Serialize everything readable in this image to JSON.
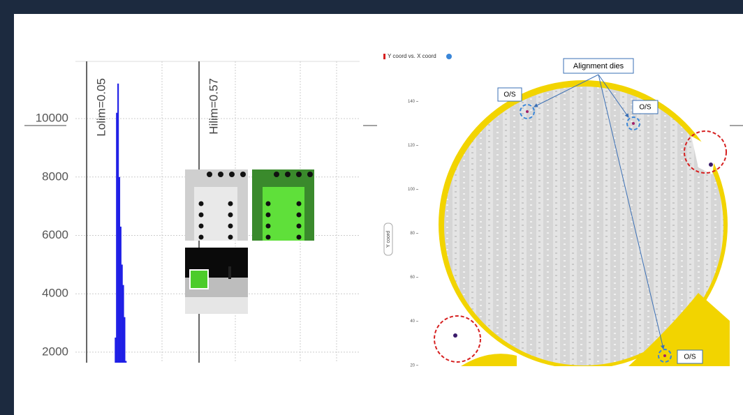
{
  "chart_data": [
    {
      "type": "histogram",
      "bins": [
        0.18,
        0.186,
        0.192,
        0.198,
        0.204,
        0.21,
        0.216,
        0.222,
        0.228,
        0.234
      ],
      "values": [
        2500,
        10200,
        11200,
        8000,
        6300,
        5000,
        4300,
        3200,
        1700
      ],
      "color": "#1f1fe6",
      "xlim": [
        -0.044,
        1.313
      ],
      "ylim": [
        1640,
        11960
      ],
      "yticks": [
        2000,
        4000,
        6000,
        8000,
        10000
      ],
      "limits": [
        {
          "value": 0.05,
          "label": "Lolim=0.05"
        },
        {
          "value": 0.57,
          "label": "Hilim=0.57"
        }
      ],
      "grid": true
    },
    {
      "type": "wafer-map",
      "title": "Y coord vs. X coord",
      "y_label": "Y coord",
      "ylim": [
        18,
        156
      ],
      "yticks": [
        20,
        40,
        60,
        80,
        100,
        120,
        140
      ],
      "annotations": [
        "Alignment dies",
        "O/S",
        "O/S",
        "O/S"
      ]
    }
  ]
}
